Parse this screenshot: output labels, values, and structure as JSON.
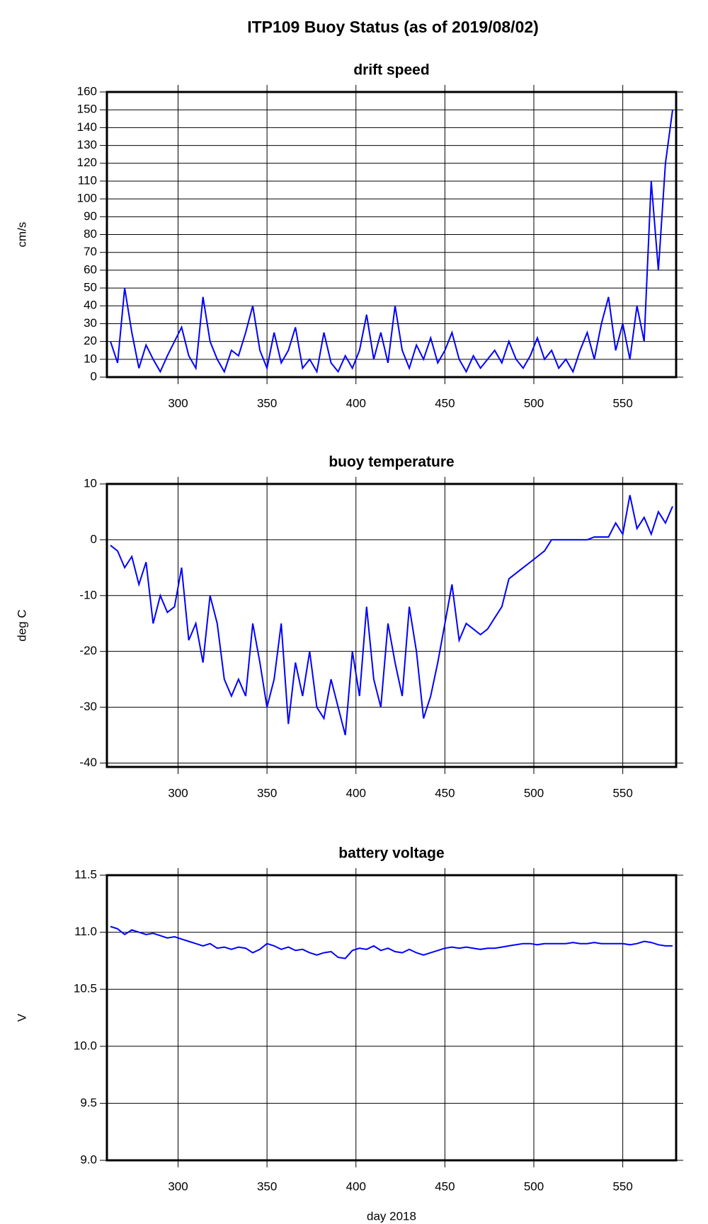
{
  "title": "ITP109 Buoy Status (as of 2019/08/02)",
  "chart_data": [
    {
      "type": "line",
      "title": "drift speed",
      "ylabel": "cm/s",
      "color": "#0000ff",
      "grid": true,
      "xlim": [
        260,
        580
      ],
      "xticks": [
        300,
        350,
        400,
        450,
        500,
        550
      ],
      "ylim": [
        0,
        160
      ],
      "yticks": [
        0,
        10,
        20,
        30,
        40,
        50,
        60,
        70,
        80,
        90,
        100,
        110,
        120,
        130,
        140,
        150,
        160
      ],
      "x": [
        262,
        266,
        270,
        274,
        278,
        282,
        286,
        290,
        294,
        298,
        302,
        306,
        310,
        314,
        318,
        322,
        326,
        330,
        334,
        338,
        342,
        346,
        350,
        354,
        358,
        362,
        366,
        370,
        374,
        378,
        382,
        386,
        390,
        394,
        398,
        402,
        406,
        410,
        414,
        418,
        422,
        426,
        430,
        434,
        438,
        442,
        446,
        450,
        454,
        458,
        462,
        466,
        470,
        474,
        478,
        482,
        486,
        490,
        494,
        498,
        502,
        506,
        510,
        514,
        518,
        522,
        526,
        530,
        534,
        538,
        542,
        546,
        550,
        554,
        558,
        562,
        566,
        570,
        574,
        578
      ],
      "values": [
        20,
        8,
        50,
        25,
        5,
        18,
        10,
        3,
        12,
        20,
        28,
        12,
        5,
        45,
        20,
        10,
        3,
        15,
        12,
        25,
        40,
        15,
        5,
        25,
        8,
        15,
        28,
        5,
        10,
        3,
        25,
        8,
        3,
        12,
        5,
        15,
        35,
        10,
        25,
        8,
        40,
        15,
        5,
        18,
        10,
        22,
        8,
        15,
        25,
        10,
        3,
        12,
        5,
        10,
        15,
        8,
        20,
        10,
        5,
        12,
        22,
        10,
        15,
        5,
        10,
        3,
        15,
        25,
        10,
        30,
        45,
        15,
        30,
        10,
        40,
        20,
        110,
        60,
        120,
        150
      ]
    },
    {
      "type": "line",
      "title": "buoy temperature",
      "ylabel": "deg C",
      "color": "#0000ff",
      "grid": true,
      "xlim": [
        260,
        580
      ],
      "xticks": [
        300,
        350,
        400,
        450,
        500,
        550
      ],
      "ylim": [
        -40.7,
        10
      ],
      "yticks": [
        -40,
        -30,
        -20,
        -10,
        0,
        10
      ],
      "x": [
        262,
        266,
        270,
        274,
        278,
        282,
        286,
        290,
        294,
        298,
        302,
        306,
        310,
        314,
        318,
        322,
        326,
        330,
        334,
        338,
        342,
        346,
        350,
        354,
        358,
        362,
        366,
        370,
        374,
        378,
        382,
        386,
        390,
        394,
        398,
        402,
        406,
        410,
        414,
        418,
        422,
        426,
        430,
        434,
        438,
        442,
        446,
        450,
        454,
        458,
        462,
        466,
        470,
        474,
        478,
        482,
        486,
        490,
        494,
        498,
        502,
        506,
        510,
        514,
        518,
        522,
        526,
        530,
        534,
        538,
        542,
        546,
        550,
        554,
        558,
        562,
        566,
        570,
        574,
        578
      ],
      "values": [
        -1,
        -2,
        -5,
        -3,
        -8,
        -4,
        -15,
        -10,
        -13,
        -12,
        -5,
        -18,
        -15,
        -22,
        -10,
        -15,
        -25,
        -28,
        -25,
        -28,
        -15,
        -22,
        -30,
        -25,
        -15,
        -33,
        -22,
        -28,
        -20,
        -30,
        -32,
        -25,
        -30,
        -35,
        -20,
        -28,
        -12,
        -25,
        -30,
        -15,
        -22,
        -28,
        -12,
        -20,
        -32,
        -28,
        -22,
        -15,
        -8,
        -18,
        -15,
        -16,
        -17,
        -16,
        -14,
        -12,
        -7,
        -6,
        -5,
        -4,
        -3,
        -2,
        0,
        0,
        0,
        0,
        0,
        0,
        0.5,
        0.5,
        0.5,
        3,
        1,
        8,
        2,
        4,
        1,
        5,
        3,
        6
      ]
    },
    {
      "type": "line",
      "title": "battery voltage",
      "ylabel": "V",
      "xlabel": "day 2018",
      "color": "#0000ff",
      "grid": true,
      "xlim": [
        260,
        580
      ],
      "xticks": [
        300,
        350,
        400,
        450,
        500,
        550
      ],
      "ylim": [
        9,
        11.5
      ],
      "yticks": [
        {
          "value": 9,
          "label": "9.0"
        },
        9.5,
        {
          "value": 10,
          "label": "10.0"
        },
        10.5,
        {
          "value": 11,
          "label": "11.0"
        },
        11.5
      ],
      "x": [
        262,
        266,
        270,
        274,
        278,
        282,
        286,
        290,
        294,
        298,
        302,
        306,
        310,
        314,
        318,
        322,
        326,
        330,
        334,
        338,
        342,
        346,
        350,
        354,
        358,
        362,
        366,
        370,
        374,
        378,
        382,
        386,
        390,
        394,
        398,
        402,
        406,
        410,
        414,
        418,
        422,
        426,
        430,
        434,
        438,
        442,
        446,
        450,
        454,
        458,
        462,
        466,
        470,
        474,
        478,
        482,
        486,
        490,
        494,
        498,
        502,
        506,
        510,
        514,
        518,
        522,
        526,
        530,
        534,
        538,
        542,
        546,
        550,
        554,
        558,
        562,
        566,
        570,
        574,
        578
      ],
      "values": [
        11.05,
        11.03,
        10.98,
        11.02,
        11.0,
        10.98,
        10.99,
        10.97,
        10.95,
        10.96,
        10.94,
        10.92,
        10.9,
        10.88,
        10.9,
        10.86,
        10.87,
        10.85,
        10.87,
        10.86,
        10.82,
        10.85,
        10.9,
        10.88,
        10.85,
        10.87,
        10.84,
        10.85,
        10.82,
        10.8,
        10.82,
        10.83,
        10.78,
        10.77,
        10.84,
        10.86,
        10.85,
        10.88,
        10.84,
        10.86,
        10.83,
        10.82,
        10.85,
        10.82,
        10.8,
        10.82,
        10.84,
        10.86,
        10.87,
        10.86,
        10.87,
        10.86,
        10.85,
        10.86,
        10.86,
        10.87,
        10.88,
        10.89,
        10.9,
        10.9,
        10.89,
        10.9,
        10.9,
        10.9,
        10.9,
        10.91,
        10.9,
        10.9,
        10.91,
        10.9,
        10.9,
        10.9,
        10.9,
        10.89,
        10.9,
        10.92,
        10.91,
        10.89,
        10.88,
        10.88
      ]
    }
  ]
}
